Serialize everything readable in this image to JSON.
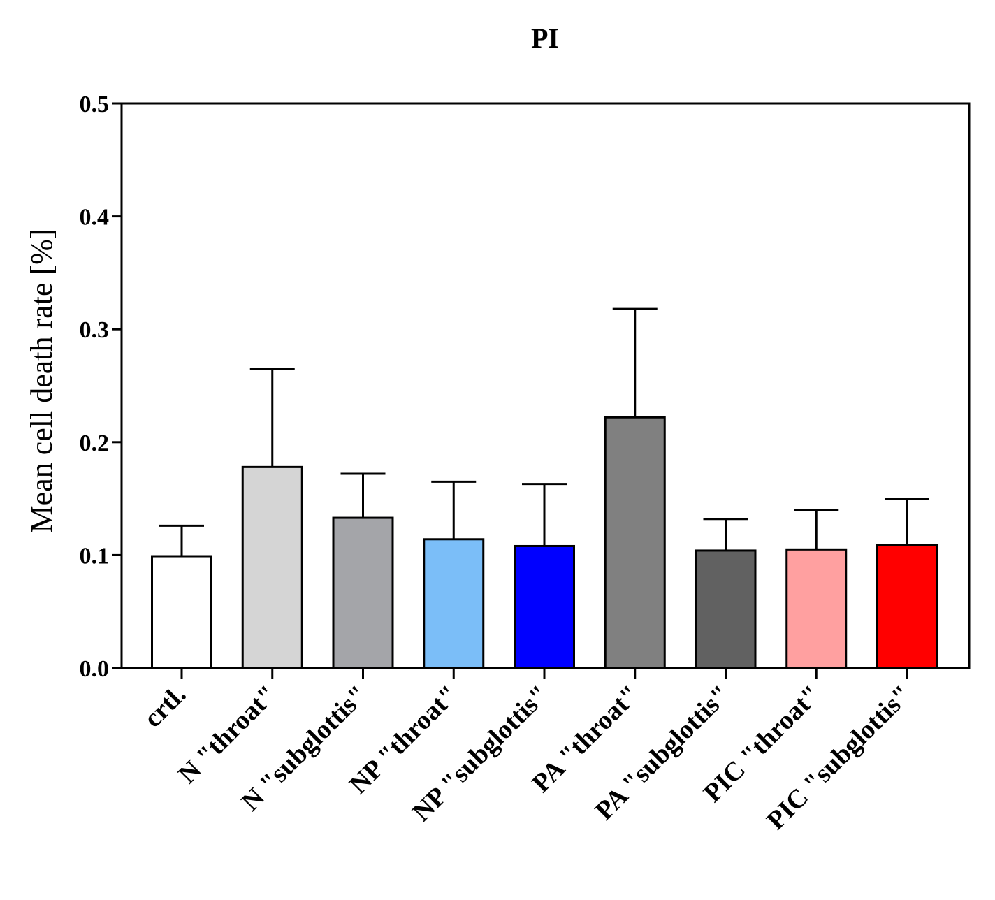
{
  "chart_data": {
    "type": "bar",
    "title": "PI",
    "xlabel": "",
    "ylabel": "Mean cell death rate [%]",
    "ylim": [
      0,
      0.5
    ],
    "yticks": [
      "0.0",
      "0.1",
      "0.2",
      "0.3",
      "0.4",
      "0.5"
    ],
    "ytick_values": [
      0,
      0.1,
      0.2,
      0.3,
      0.4,
      0.5
    ],
    "grid": false,
    "categories": [
      "crtl.",
      "N \"throat\"",
      "N \"subglottis\"",
      "NP \"throat\"",
      "NP \"subglottis\"",
      "PA \"throat\"",
      "PA \"subglottis\"",
      "PIC \"throat\"",
      "PIC \"subglottis\""
    ],
    "values": [
      0.099,
      0.178,
      0.133,
      0.114,
      0.108,
      0.222,
      0.104,
      0.105,
      0.109
    ],
    "error_upper": [
      0.126,
      0.265,
      0.172,
      0.165,
      0.163,
      0.318,
      0.132,
      0.14,
      0.15
    ],
    "colors": [
      "#ffffff",
      "#d5d5d5",
      "#a4a5a9",
      "#7bbef8",
      "#0000ff",
      "#808080",
      "#616161",
      "#ffa0a0",
      "#ff0000"
    ]
  }
}
